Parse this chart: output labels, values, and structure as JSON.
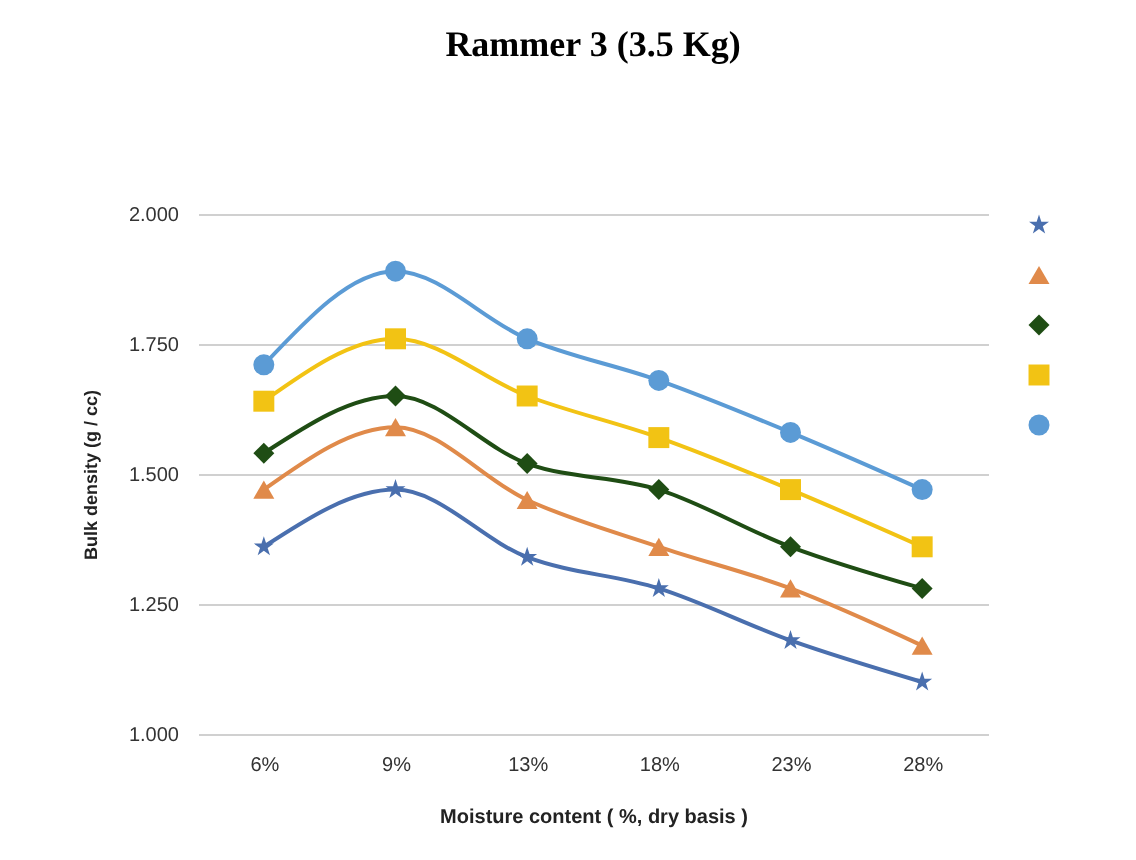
{
  "chart_data": {
    "type": "line",
    "title": "Rammer 3 (3.5 Kg)",
    "xlabel": "Moisture content ( %, dry basis )",
    "ylabel": "Bulk density (g / cc)",
    "categories": [
      "6%",
      "9%",
      "13%",
      "18%",
      "23%",
      "28%"
    ],
    "series": [
      {
        "color": "#4a6fae",
        "marker": "star",
        "values": [
          1.36,
          1.47,
          1.34,
          1.28,
          1.18,
          1.1
        ]
      },
      {
        "color": "#e08a4a",
        "marker": "triangle",
        "values": [
          1.47,
          1.59,
          1.45,
          1.36,
          1.28,
          1.17
        ]
      },
      {
        "color": "#1f4d14",
        "marker": "diamond",
        "values": [
          1.54,
          1.65,
          1.52,
          1.47,
          1.36,
          1.28
        ]
      },
      {
        "color": "#f2c314",
        "marker": "square",
        "values": [
          1.64,
          1.76,
          1.65,
          1.57,
          1.47,
          1.36
        ]
      },
      {
        "color": "#5b9bd5",
        "marker": "circle",
        "values": [
          1.71,
          1.89,
          1.76,
          1.68,
          1.58,
          1.47
        ]
      }
    ],
    "ylim": [
      1.0,
      2.0
    ],
    "yticks": [
      {
        "value": 1.0,
        "label": "1.000"
      },
      {
        "value": 1.25,
        "label": "1.250"
      },
      {
        "value": 1.5,
        "label": "1.500"
      },
      {
        "value": 1.75,
        "label": "1.750"
      },
      {
        "value": 2.0,
        "label": "2.000"
      }
    ],
    "grid": "y",
    "line_style": "solid"
  }
}
